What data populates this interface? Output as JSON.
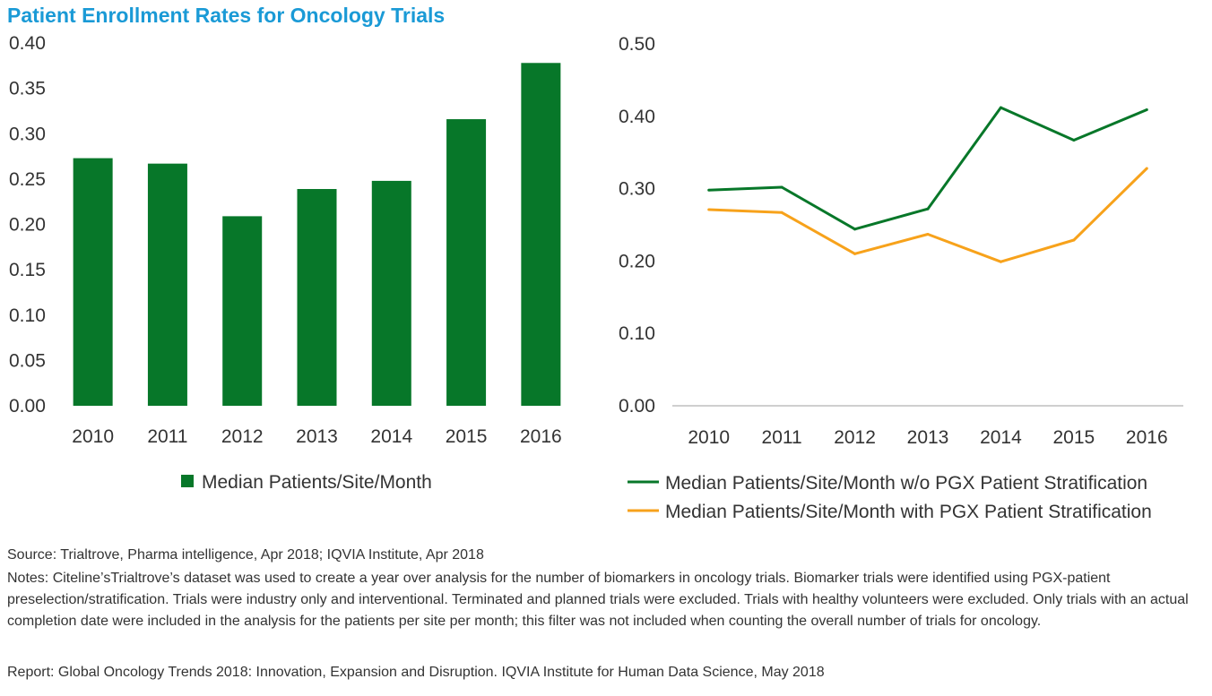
{
  "title": "Patient Enrollment Rates for Oncology Trials",
  "colors": {
    "green": "#077729",
    "orange": "#f7a21b",
    "title": "#1a9ad6"
  },
  "chart_data": [
    {
      "type": "bar",
      "categories": [
        "2010",
        "2011",
        "2012",
        "2013",
        "2014",
        "2015",
        "2016"
      ],
      "series": [
        {
          "name": "Median Patients/Site/Month",
          "values": [
            0.273,
            0.267,
            0.209,
            0.239,
            0.248,
            0.316,
            0.378
          ],
          "color": "#077729"
        }
      ],
      "ylim": [
        0,
        0.4
      ],
      "yticks": [
        "0.00",
        "0.05",
        "0.10",
        "0.15",
        "0.20",
        "0.25",
        "0.30",
        "0.35",
        "0.40"
      ],
      "legend": "bottom"
    },
    {
      "type": "line",
      "categories": [
        "2010",
        "2011",
        "2012",
        "2013",
        "2014",
        "2015",
        "2016"
      ],
      "series": [
        {
          "name": "Median Patients/Site/Month w/o PGX Patient Stratification",
          "values": [
            0.298,
            0.302,
            0.244,
            0.272,
            0.412,
            0.367,
            0.409
          ],
          "color": "#077729"
        },
        {
          "name": "Median Patients/Site/Month with PGX Patient Stratification",
          "values": [
            0.271,
            0.267,
            0.21,
            0.237,
            0.199,
            0.229,
            0.328
          ],
          "color": "#f7a21b"
        }
      ],
      "ylim": [
        0,
        0.5
      ],
      "yticks": [
        "0.00",
        "0.10",
        "0.20",
        "0.30",
        "0.40",
        "0.50"
      ],
      "legend": "bottom"
    }
  ],
  "footer": {
    "source": "Source: Trialtrove, Pharma intelligence, Apr 2018; IQVIA Institute, Apr 2018",
    "notes": "Notes: Citeline’sTrialtrove’s dataset was used to create a year over analysis for the number of biomarkers in oncology trials. Biomarker trials were identified using PGX-patient preselection/stratification. Trials were industry only and interventional. Terminated and planned trials were excluded. Trials with healthy volunteers were excluded. Only trials with an actual completion date were included in the analysis for the patients per site per month; this filter was not included when counting the overall number of trials for oncology.",
    "report": "Report: Global Oncology Trends 2018: Innovation, Expansion and Disruption. IQVIA Institute for Human Data Science, May 2018"
  }
}
